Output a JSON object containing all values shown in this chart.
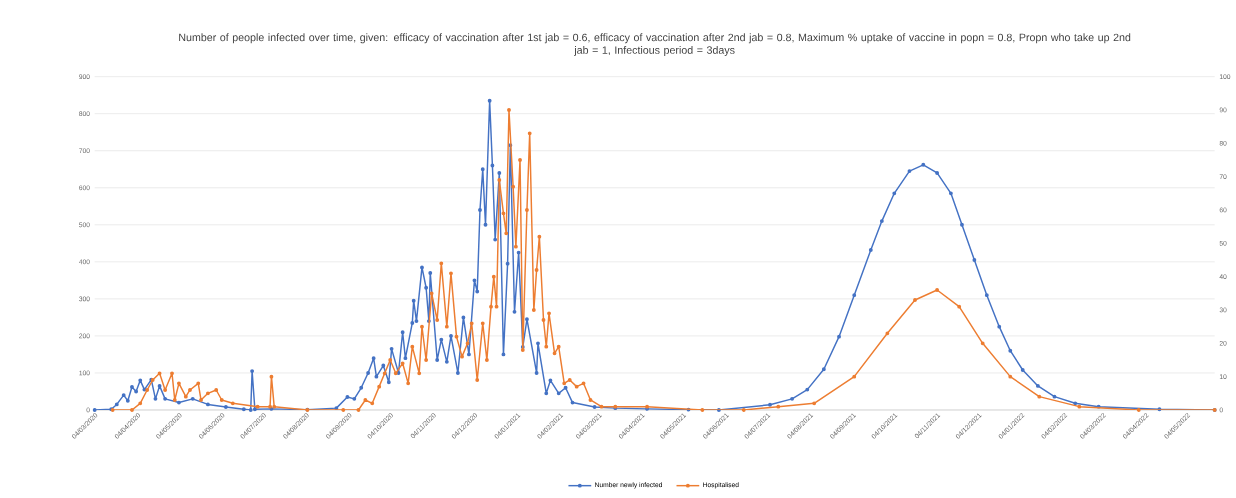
{
  "chart_data": {
    "type": "line",
    "title": "Number of people infected over time, given: efficacy of vaccination after 1st jab = 0.6, efficacy of vaccination after 2nd jab = 0.8, Maximum % uptake of vaccine in popn = 0.8, Propn who take up 2nd jab = 1, Infectious period = 3days",
    "xlim": [
      "2020-03-04",
      "2022-05-24"
    ],
    "xticks": [
      {
        "value": "2020-03-04",
        "label": "04/03/2020"
      },
      {
        "value": "2020-04-04",
        "label": "04/04/2020"
      },
      {
        "value": "2020-05-04",
        "label": "04/05/2020"
      },
      {
        "value": "2020-06-04",
        "label": "04/06/2020"
      },
      {
        "value": "2020-07-04",
        "label": "04/07/2020"
      },
      {
        "value": "2020-08-04",
        "label": "04/08/2020"
      },
      {
        "value": "2020-09-04",
        "label": "04/09/2020"
      },
      {
        "value": "2020-10-04",
        "label": "04/10/2020"
      },
      {
        "value": "2020-11-04",
        "label": "04/11/2020"
      },
      {
        "value": "2020-12-04",
        "label": "04/12/2020"
      },
      {
        "value": "2021-01-04",
        "label": "04/01/2021"
      },
      {
        "value": "2021-02-04",
        "label": "04/02/2021"
      },
      {
        "value": "2021-03-04",
        "label": "04/03/2021"
      },
      {
        "value": "2021-04-04",
        "label": "04/04/2021"
      },
      {
        "value": "2021-05-04",
        "label": "04/05/2021"
      },
      {
        "value": "2021-06-04",
        "label": "04/06/2021"
      },
      {
        "value": "2021-07-04",
        "label": "04/07/2021"
      },
      {
        "value": "2021-08-04",
        "label": "04/08/2021"
      },
      {
        "value": "2021-09-04",
        "label": "04/09/2021"
      },
      {
        "value": "2021-10-04",
        "label": "04/10/2021"
      },
      {
        "value": "2021-11-04",
        "label": "04/11/2021"
      },
      {
        "value": "2021-12-04",
        "label": "04/12/2021"
      },
      {
        "value": "2022-01-04",
        "label": "04/01/2022"
      },
      {
        "value": "2022-02-04",
        "label": "04/02/2022"
      },
      {
        "value": "2022-03-04",
        "label": "04/03/2022"
      },
      {
        "value": "2022-04-04",
        "label": "04/04/2022"
      },
      {
        "value": "2022-05-04",
        "label": "04/05/2022"
      }
    ],
    "ylim": [
      0,
      900
    ],
    "yticks": [
      0,
      100,
      200,
      300,
      400,
      500,
      600,
      700,
      800,
      900
    ],
    "y2lim": [
      0,
      100
    ],
    "y2ticks": [
      0,
      10,
      20,
      30,
      40,
      50,
      60,
      70,
      80,
      90,
      100
    ],
    "grid": "y",
    "legend": "bottom",
    "marker": "circle",
    "line_style": "solid",
    "series": [
      {
        "name": "Number newly infected",
        "color": "#4472c4",
        "x": [
          "2020-03-04",
          "2020-03-16",
          "2020-03-20",
          "2020-03-25",
          "2020-03-28",
          "2020-03-31",
          "2020-04-03",
          "2020-04-06",
          "2020-04-09",
          "2020-04-14",
          "2020-04-17",
          "2020-04-20",
          "2020-04-24",
          "2020-05-04",
          "2020-05-14",
          "2020-05-25",
          "2020-06-07",
          "2020-06-20",
          "2020-06-25",
          "2020-06-26",
          "2020-06-28",
          "2020-07-10",
          "2020-08-05",
          "2020-08-26",
          "2020-09-03",
          "2020-09-08",
          "2020-09-13",
          "2020-09-18",
          "2020-09-22",
          "2020-09-24",
          "2020-09-29",
          "2020-10-03",
          "2020-10-05",
          "2020-10-10",
          "2020-10-13",
          "2020-10-15",
          "2020-10-20",
          "2020-10-21",
          "2020-10-23",
          "2020-10-27",
          "2020-10-30",
          "2020-11-01",
          "2020-11-02",
          "2020-11-07",
          "2020-11-10",
          "2020-11-14",
          "2020-11-17",
          "2020-11-22",
          "2020-11-26",
          "2020-11-30",
          "2020-12-04",
          "2020-12-06",
          "2020-12-08",
          "2020-12-10",
          "2020-12-12",
          "2020-12-15",
          "2020-12-17",
          "2020-12-19",
          "2020-12-22",
          "2020-12-25",
          "2020-12-28",
          "2020-12-30",
          "2021-01-02",
          "2021-01-05",
          "2021-01-08",
          "2021-01-11",
          "2021-01-18",
          "2021-01-19",
          "2021-01-25",
          "2021-01-28",
          "2021-02-03",
          "2021-02-08",
          "2021-02-13",
          "2021-03-01",
          "2021-03-16",
          "2021-04-08",
          "2021-05-08",
          "2021-05-30",
          "2021-07-06",
          "2021-07-22",
          "2021-08-02",
          "2021-08-14",
          "2021-08-25",
          "2021-09-05",
          "2021-09-17",
          "2021-09-25",
          "2021-10-04",
          "2021-10-15",
          "2021-10-25",
          "2021-11-04",
          "2021-11-14",
          "2021-11-22",
          "2021-12-01",
          "2021-12-10",
          "2021-12-19",
          "2021-12-27",
          "2022-01-05",
          "2022-01-16",
          "2022-01-28",
          "2022-02-12",
          "2022-03-01",
          "2022-04-14",
          "2022-05-24"
        ],
        "values": [
          0,
          2,
          15,
          40,
          25,
          62,
          50,
          80,
          55,
          82,
          30,
          65,
          30,
          20,
          30,
          15,
          8,
          2,
          0,
          105,
          2,
          3,
          1,
          5,
          35,
          30,
          60,
          100,
          140,
          90,
          120,
          75,
          165,
          100,
          210,
          140,
          235,
          295,
          240,
          385,
          330,
          240,
          370,
          135,
          190,
          130,
          200,
          100,
          250,
          150,
          350,
          320,
          540,
          650,
          500,
          835,
          660,
          460,
          640,
          150,
          395,
          715,
          265,
          425,
          170,
          245,
          100,
          180,
          45,
          80,
          45,
          60,
          20,
          8,
          5,
          3,
          1,
          0,
          14,
          30,
          55,
          110,
          198,
          310,
          432,
          510,
          585,
          645,
          662,
          640,
          585,
          500,
          405,
          310,
          225,
          160,
          108,
          65,
          36,
          18,
          9,
          2,
          0
        ]
      },
      {
        "name": "Hospitalised",
        "color": "#ed7d31",
        "axis": "y2",
        "x": [
          "2020-03-17",
          "2020-03-31",
          "2020-04-06",
          "2020-04-11",
          "2020-04-15",
          "2020-04-20",
          "2020-04-24",
          "2020-04-29",
          "2020-05-01",
          "2020-05-04",
          "2020-05-09",
          "2020-05-12",
          "2020-05-18",
          "2020-05-20",
          "2020-05-25",
          "2020-05-31",
          "2020-06-04",
          "2020-06-12",
          "2020-06-30",
          "2020-07-09",
          "2020-07-10",
          "2020-07-12",
          "2020-08-05",
          "2020-08-31",
          "2020-09-11",
          "2020-09-16",
          "2020-09-21",
          "2020-09-26",
          "2020-09-30",
          "2020-10-04",
          "2020-10-08",
          "2020-10-13",
          "2020-10-17",
          "2020-10-20",
          "2020-10-25",
          "2020-10-27",
          "2020-10-30",
          "2020-11-03",
          "2020-11-07",
          "2020-11-10",
          "2020-11-14",
          "2020-11-17",
          "2020-11-21",
          "2020-11-25",
          "2020-11-29",
          "2020-12-02",
          "2020-12-06",
          "2020-12-10",
          "2020-12-13",
          "2020-12-16",
          "2020-12-18",
          "2020-12-20",
          "2020-12-22",
          "2020-12-25",
          "2020-12-27",
          "2020-12-29",
          "2021-01-01",
          "2021-01-03",
          "2021-01-06",
          "2021-01-08",
          "2021-01-11",
          "2021-01-13",
          "2021-01-16",
          "2021-01-18",
          "2021-01-20",
          "2021-01-23",
          "2021-01-25",
          "2021-01-27",
          "2021-01-31",
          "2021-02-03",
          "2021-02-07",
          "2021-02-11",
          "2021-02-16",
          "2021-02-21",
          "2021-02-26",
          "2021-03-06",
          "2021-03-16",
          "2021-04-08",
          "2021-05-18",
          "2021-06-17",
          "2021-07-12",
          "2021-08-07",
          "2021-09-05",
          "2021-09-29",
          "2021-10-19",
          "2021-11-04",
          "2021-11-20",
          "2021-12-07",
          "2021-12-27",
          "2022-01-17",
          "2022-02-15",
          "2022-03-30",
          "2022-05-24"
        ],
        "values": [
          0,
          0,
          2,
          6,
          9,
          11,
          6,
          11,
          3,
          8,
          4,
          6,
          8,
          3,
          5,
          6,
          3,
          2,
          1,
          1,
          10,
          1,
          0,
          0,
          0,
          3,
          2,
          7,
          11,
          15,
          11,
          14,
          8,
          19,
          11,
          25,
          15,
          35,
          27,
          44,
          25,
          41,
          22,
          16,
          20,
          26,
          9,
          26,
          15,
          31,
          40,
          31,
          69,
          59,
          53,
          90,
          67,
          49,
          75,
          18,
          60,
          83,
          30,
          42,
          52,
          27,
          19,
          29,
          17,
          19,
          8,
          9,
          7,
          8,
          3,
          1,
          1,
          1,
          0,
          0,
          1,
          2,
          10,
          23,
          33,
          36,
          31,
          20,
          10,
          4,
          1,
          0,
          0
        ]
      }
    ]
  }
}
